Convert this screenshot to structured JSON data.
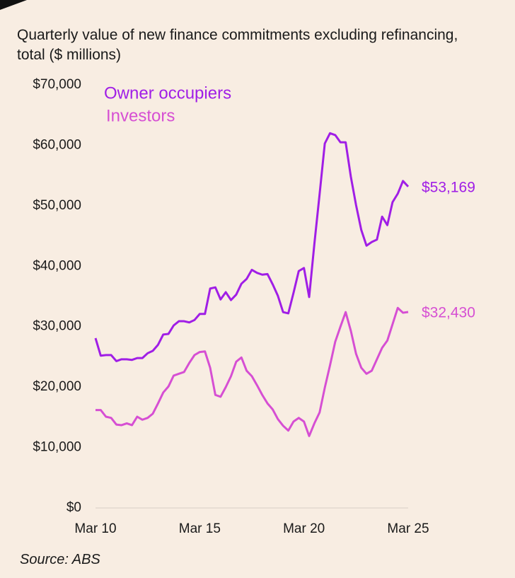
{
  "chart_data": {
    "type": "line",
    "title": "Quarterly value of new finance commitments excluding refinancing, total ($ millions)",
    "source": "Source: ABS",
    "categories": [
      "Mar 10",
      null,
      null,
      null,
      null,
      null,
      null,
      null,
      null,
      null,
      null,
      null,
      null,
      null,
      null,
      null,
      null,
      null,
      null,
      null,
      "Mar 15",
      null,
      null,
      null,
      null,
      null,
      null,
      null,
      null,
      null,
      null,
      null,
      null,
      null,
      null,
      null,
      null,
      null,
      null,
      null,
      "Mar 20",
      null,
      null,
      null,
      null,
      null,
      null,
      null,
      null,
      null,
      null,
      null,
      null,
      null,
      null,
      null,
      null,
      null,
      null,
      null,
      "Mar 25"
    ],
    "series": [
      {
        "name": "Owner occupiers",
        "color": "#a01ee6",
        "values": [
          28100,
          25200,
          25300,
          25300,
          24300,
          24600,
          24600,
          24500,
          24800,
          24800,
          25600,
          26000,
          27000,
          28700,
          28800,
          30200,
          30900,
          30900,
          30700,
          31100,
          32100,
          32100,
          36300,
          36500,
          34500,
          35700,
          34400,
          35300,
          37100,
          37900,
          39400,
          38900,
          38600,
          38700,
          37000,
          35100,
          32400,
          32200,
          35600,
          39200,
          39700,
          34900,
          43700,
          51900,
          60300,
          62000,
          61700,
          60500,
          60500,
          54800,
          50100,
          46000,
          43400,
          44000,
          44400,
          48200,
          46800,
          50600,
          52000,
          54100,
          53169
        ],
        "value_labels": [
          null,
          null,
          null,
          null,
          null,
          null,
          null,
          null,
          null,
          null,
          null,
          null,
          null,
          null,
          null,
          null,
          null,
          null,
          null,
          null,
          null,
          null,
          null,
          null,
          null,
          null,
          null,
          null,
          null,
          null,
          null,
          null,
          null,
          null,
          null,
          null,
          null,
          null,
          null,
          null,
          null,
          null,
          null,
          null,
          null,
          null,
          null,
          null,
          null,
          null,
          null,
          null,
          null,
          null,
          null,
          null,
          null,
          null,
          null,
          null,
          "$53,169"
        ]
      },
      {
        "name": "Investors",
        "color": "#d64fd3",
        "values": [
          16200,
          16200,
          15100,
          14900,
          13800,
          13700,
          14000,
          13700,
          15100,
          14600,
          14900,
          15600,
          17300,
          19100,
          20100,
          21900,
          22200,
          22500,
          24000,
          25300,
          25800,
          25900,
          23200,
          18700,
          18400,
          20000,
          21800,
          24200,
          24900,
          22700,
          21800,
          20300,
          18700,
          17300,
          16300,
          14700,
          13600,
          12800,
          14300,
          14900,
          14300,
          11900,
          14000,
          15800,
          19900,
          23600,
          27500,
          30000,
          32400,
          29300,
          25500,
          23200,
          22200,
          22700,
          24600,
          26500,
          27700,
          30400,
          33100,
          32300,
          32430
        ],
        "value_labels": [
          null,
          null,
          null,
          null,
          null,
          null,
          null,
          null,
          null,
          null,
          null,
          null,
          null,
          null,
          null,
          null,
          null,
          null,
          null,
          null,
          null,
          null,
          null,
          null,
          null,
          null,
          null,
          null,
          null,
          null,
          null,
          null,
          null,
          null,
          null,
          null,
          null,
          null,
          null,
          null,
          null,
          null,
          null,
          null,
          null,
          null,
          null,
          null,
          null,
          null,
          null,
          null,
          null,
          null,
          null,
          null,
          null,
          null,
          null,
          null,
          "$32,430"
        ]
      }
    ],
    "ylim": [
      0,
      70000
    ],
    "yticks": [
      {
        "value": 0,
        "label": "$0"
      },
      {
        "value": 10000,
        "label": "$10,000"
      },
      {
        "value": 20000,
        "label": "$20,000"
      },
      {
        "value": 30000,
        "label": "$30,000"
      },
      {
        "value": 40000,
        "label": "$40,000"
      },
      {
        "value": 50000,
        "label": "$50,000"
      },
      {
        "value": 60000,
        "label": "$60,000"
      },
      {
        "value": 70000,
        "label": "$70,000"
      }
    ],
    "grid": false
  }
}
